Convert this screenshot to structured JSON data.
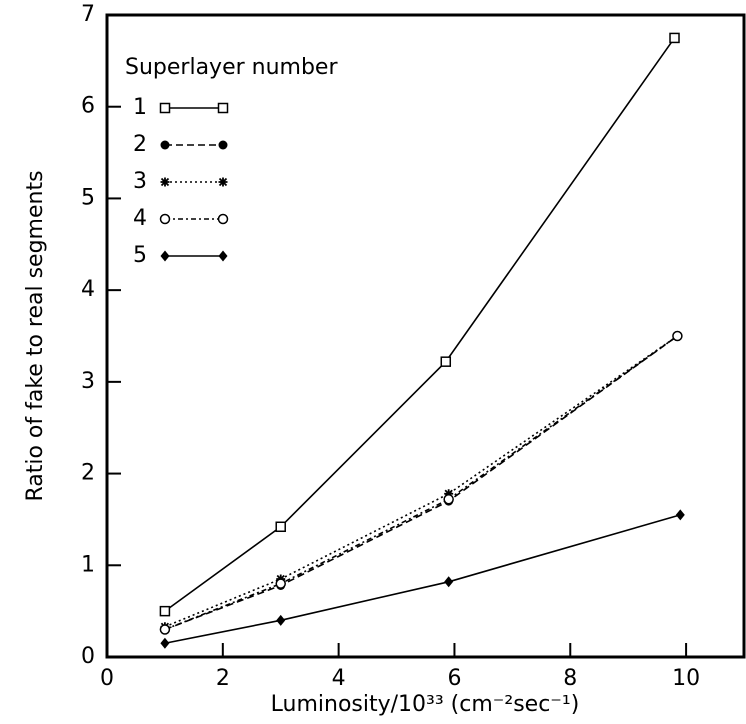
{
  "chart_data": {
    "type": "line",
    "x_label": "Luminosity/10³³ (cm⁻²sec⁻¹)",
    "y_label": "Ratio of fake to real segments",
    "legend_title": "Superlayer number",
    "legend": "upper-left",
    "xlim": [
      0,
      11
    ],
    "xticks": [
      0,
      2,
      4,
      6,
      8,
      10
    ],
    "ylim": [
      0,
      7
    ],
    "yticks": [
      0,
      1,
      2,
      3,
      4,
      5,
      6,
      7
    ],
    "series": [
      {
        "name": "1",
        "color": "#000000",
        "marker": "square-open",
        "dash": "solid",
        "x": [
          1,
          3,
          5.85,
          9.8
        ],
        "values": [
          0.5,
          1.42,
          3.22,
          6.75
        ]
      },
      {
        "name": "2",
        "color": "#000000",
        "marker": "circle-filled",
        "dash": "dashed",
        "x": [
          1,
          3,
          5.9,
          9.85
        ],
        "values": [
          0.3,
          0.78,
          1.7,
          3.5
        ]
      },
      {
        "name": "3",
        "color": "#000000",
        "marker": "star",
        "dash": "dotted",
        "x": [
          1,
          3,
          5.9,
          9.85
        ],
        "values": [
          0.33,
          0.85,
          1.78,
          3.5
        ]
      },
      {
        "name": "4",
        "color": "#000000",
        "marker": "circle-open",
        "dash": "dashdot",
        "x": [
          1,
          3,
          5.9,
          9.85
        ],
        "values": [
          0.3,
          0.8,
          1.72,
          3.5
        ]
      },
      {
        "name": "5",
        "color": "#000000",
        "marker": "diamond-filled",
        "dash": "solid",
        "x": [
          1,
          3,
          5.9,
          9.9
        ],
        "values": [
          0.15,
          0.4,
          0.82,
          1.55
        ]
      }
    ]
  }
}
